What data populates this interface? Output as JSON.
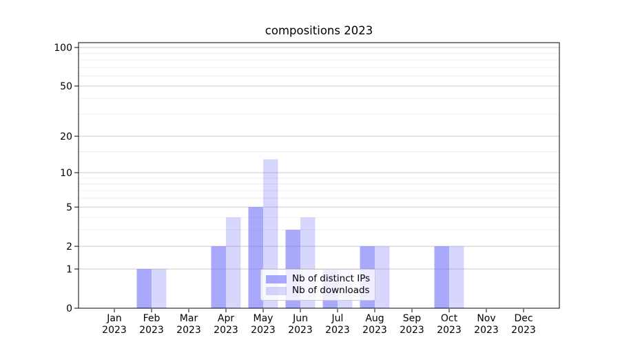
{
  "chart_data": {
    "type": "bar",
    "title": "compositions 2023",
    "categories": [
      "Jan",
      "Feb",
      "Mar",
      "Apr",
      "May",
      "Jun",
      "Jul",
      "Aug",
      "Sep",
      "Oct",
      "Nov",
      "Dec"
    ],
    "year_suffix": "2023",
    "series": [
      {
        "name": "Nb of distinct IPs",
        "color": "rgba(112,112,248,0.60)",
        "values": [
          0,
          1,
          0,
          2,
          5,
          3,
          1,
          2,
          0,
          2,
          0,
          0
        ]
      },
      {
        "name": "Nb of downloads",
        "color": "rgba(112,112,248,0.28)",
        "values": [
          0,
          1,
          0,
          4,
          13,
          4,
          1,
          2,
          0,
          2,
          0,
          0
        ]
      }
    ],
    "xlabel": "",
    "ylabel": "",
    "y_scale": "log10(1+value)",
    "y_major_ticks": [
      0,
      1,
      2,
      5,
      10,
      20,
      50,
      100
    ],
    "y_minor_ticks": [
      3,
      4,
      6,
      7,
      8,
      9,
      15,
      30,
      40,
      60,
      70,
      80,
      90
    ],
    "ylim": [
      0,
      106
    ],
    "grid": true,
    "legend_position": "lower-center",
    "colors": {
      "bar_base": "#7070f8",
      "grid_major": "#c9c9c9",
      "grid_minor": "#ececec",
      "axis": "#000000",
      "text": "#000000",
      "legend_border": "#cccccc",
      "legend_bg": "rgba(255,255,255,0.8)"
    }
  }
}
